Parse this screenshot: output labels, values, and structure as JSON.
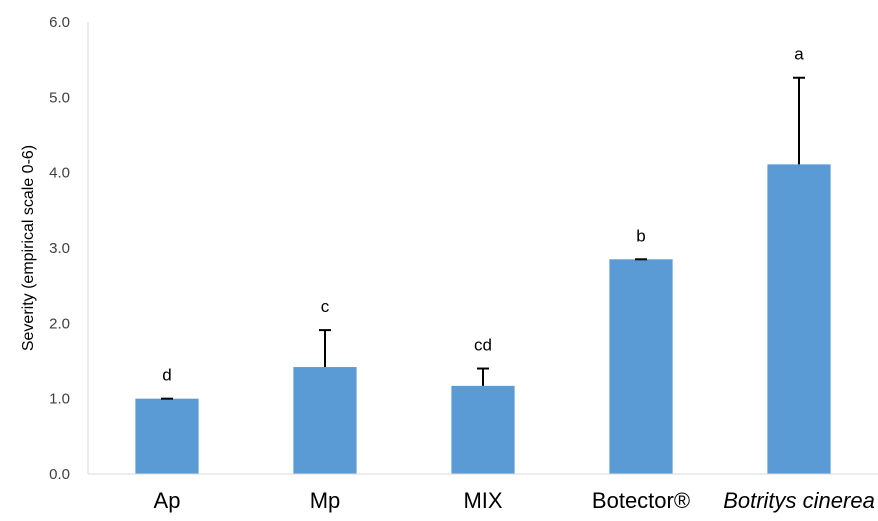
{
  "chart_data": {
    "type": "bar",
    "categories": [
      "Ap",
      "Mp",
      "MIX",
      "Botector®",
      "Botritys cinerea"
    ],
    "italic_categories": [
      "Botritys cinerea"
    ],
    "values": [
      1.0,
      1.42,
      1.17,
      2.85,
      4.11
    ],
    "error_upper": [
      0.0,
      0.49,
      0.23,
      0.0,
      1.15
    ],
    "significance_letters": [
      "d",
      "c",
      "cd",
      "b",
      "a"
    ],
    "ylabel": "Severity (empirical scale 0-6)",
    "xlabel": "",
    "title": "",
    "ylim": [
      0,
      6
    ],
    "yticks": [
      "0.0",
      "1.0",
      "2.0",
      "3.0",
      "4.0",
      "5.0",
      "6.0"
    ],
    "bar_color": "#5b9bd5",
    "grid": false,
    "legend": "none"
  }
}
